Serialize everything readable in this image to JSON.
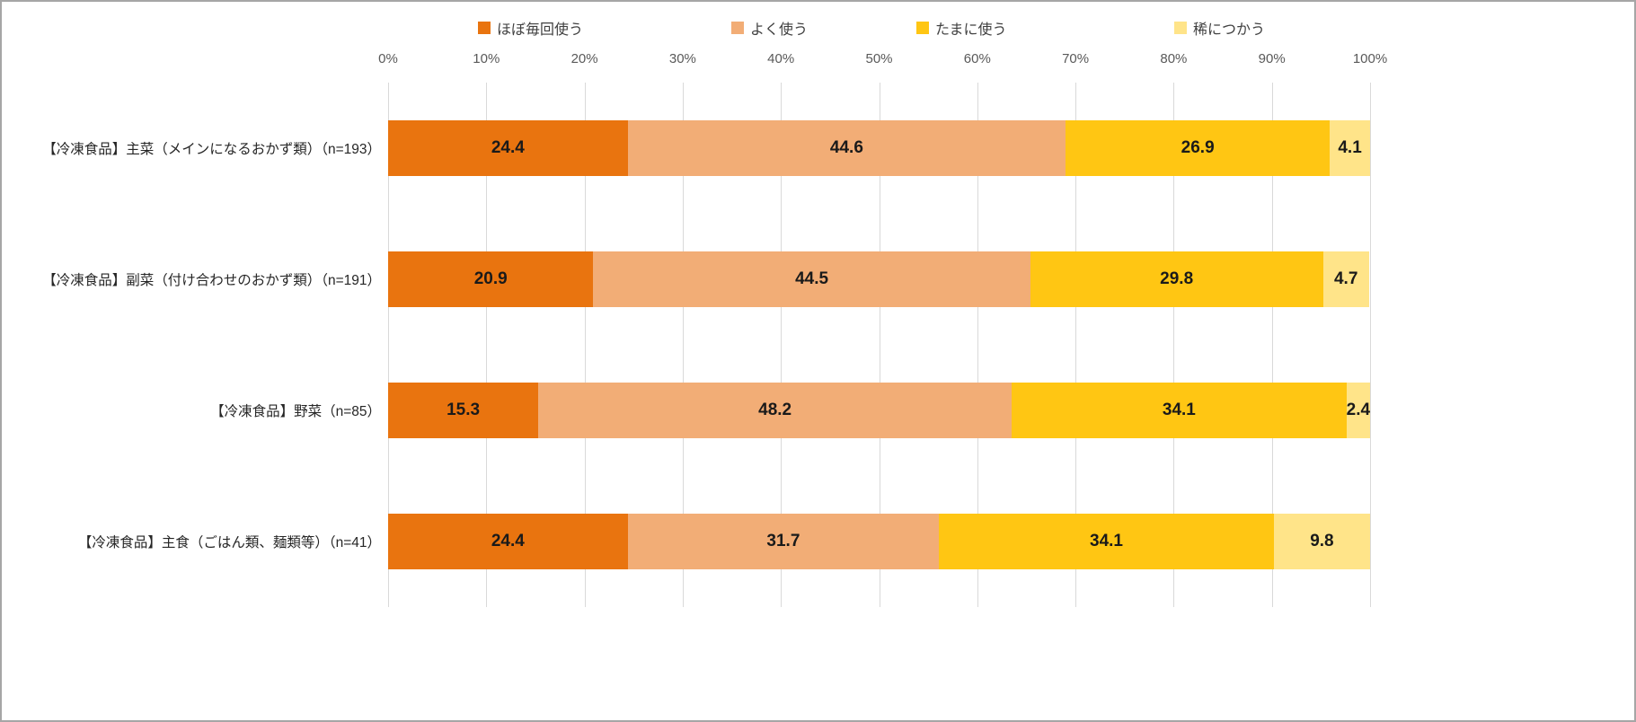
{
  "chart_data": {
    "type": "bar",
    "orientation": "horizontal",
    "stacked": true,
    "title": "",
    "legend_position": "top",
    "grid": true,
    "categories": [
      "【冷凍食品】主菜（メインになるおかず類）（n=193）",
      "【冷凍食品】副菜（付け合わせのおかず類）（n=191）",
      "【冷凍食品】野菜（n=85）",
      "【冷凍食品】主食（ごはん類、麺類等）（n=41）"
    ],
    "series": [
      {
        "name": "ほぼ毎回使う",
        "color": "#e9740f",
        "values": [
          24.4,
          20.9,
          15.3,
          24.4
        ]
      },
      {
        "name": "よく使う",
        "color": "#f2ad76",
        "values": [
          44.6,
          44.5,
          48.2,
          31.7
        ]
      },
      {
        "name": "たまに使う",
        "color": "#ffc613",
        "values": [
          26.9,
          29.8,
          34.1,
          34.1
        ]
      },
      {
        "name": "稀につかう",
        "color": "#ffe489",
        "values": [
          4.1,
          4.7,
          2.4,
          9.8
        ]
      }
    ],
    "x_axis": {
      "min": 0,
      "max": 100,
      "ticks": [
        "0%",
        "10%",
        "20%",
        "30%",
        "40%",
        "50%",
        "60%",
        "70%",
        "80%",
        "90%",
        "100%"
      ]
    },
    "colors": {
      "gridline": "#d9d9d9",
      "border": "#a6a6a6",
      "value_label": "#1a1a1a"
    }
  }
}
